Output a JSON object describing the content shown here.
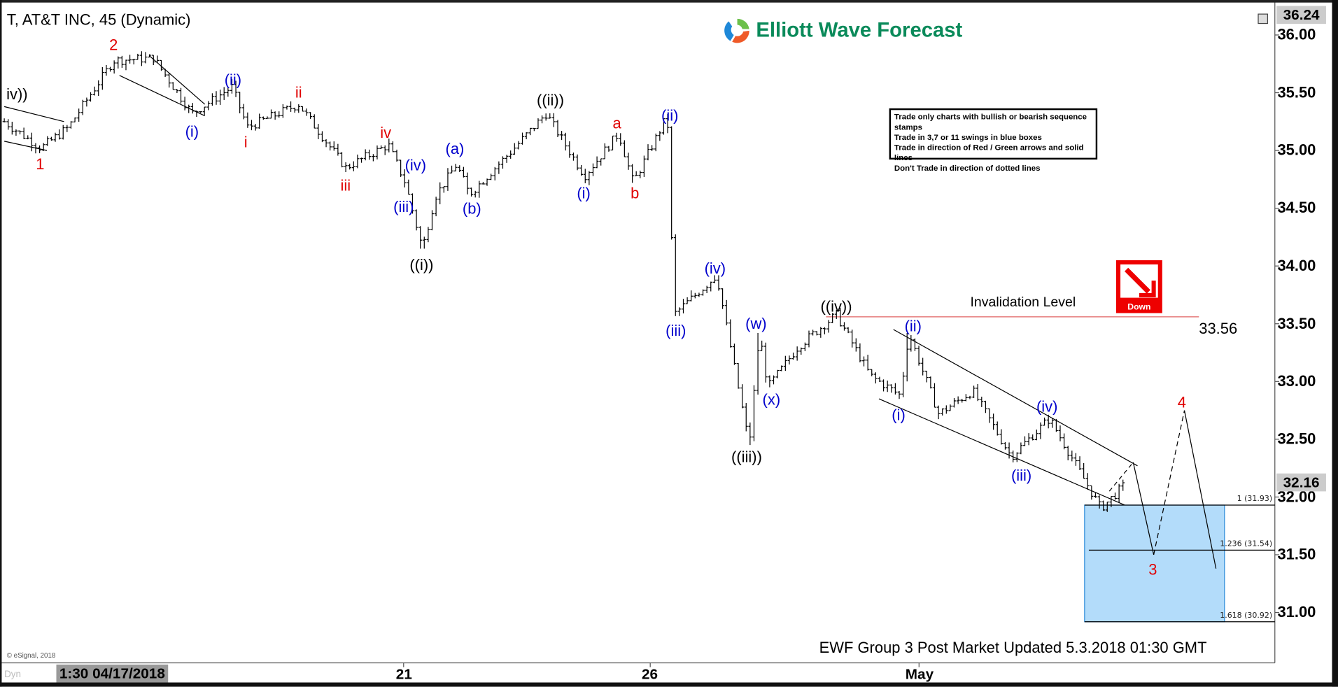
{
  "header": {
    "title": "T, AT&T INC, 45 (Dynamic)",
    "logo_text": "Elliott Wave Forecast"
  },
  "rules_box": {
    "lines": [
      "Trade only charts with bullish or bearish sequence stamps",
      "Trade in 3,7 or 11 swings in blue boxes",
      "Trade in direction of Red / Green arrows and solid lines",
      "Don't Trade in direction of dotted lines"
    ]
  },
  "invalidation": {
    "label": "Invalidation Level",
    "value": "33.56",
    "color": "#e06060"
  },
  "down_badge": {
    "label": "Down",
    "color": "#e00000",
    "icon": "arrow-down-right-icon"
  },
  "footer": "EWF Group 3 Post Market Updated 5.3.2018 01:30 GMT",
  "copyright": "© eSignal, 2018",
  "dyn_label": "Dyn",
  "chart_data": {
    "type": "ohlc",
    "title": "T, AT&T INC, 45 (Dynamic)",
    "y_axis": {
      "range": [
        30.7,
        36.3
      ],
      "ticks": [
        "36.00",
        "35.50",
        "35.00",
        "34.50",
        "34.00",
        "33.50",
        "33.00",
        "32.50",
        "32.00",
        "31.50",
        "31.00"
      ],
      "top_value": "36.24",
      "current_price": "32.16"
    },
    "x_axis": {
      "ticks": [
        "1:30 04/17/2018",
        "21",
        "26",
        "May"
      ]
    },
    "pivot_prices": [
      35.25,
      35.02,
      35.2,
      35.78,
      35.8,
      35.32,
      35.55,
      35.2,
      35.4,
      34.85,
      35.05,
      34.72,
      34.15,
      34.6,
      34.88,
      34.62,
      35.0,
      35.32,
      34.78,
      35.15,
      34.72,
      35.3,
      33.58,
      33.92,
      32.45,
      33.42,
      32.95,
      33.3,
      33.58,
      33.05,
      32.88,
      33.42,
      32.72,
      32.92,
      32.35,
      32.68,
      31.9,
      32.12
    ],
    "wave_labels": [
      {
        "text": "iv))",
        "color": "#000000"
      },
      {
        "text": "1",
        "color": "#e00000"
      },
      {
        "text": "2",
        "color": "#e00000"
      },
      {
        "text": "(i)",
        "color": "#0000cc"
      },
      {
        "text": "(ii)",
        "color": "#0000cc"
      },
      {
        "text": "i",
        "color": "#e00000"
      },
      {
        "text": "ii",
        "color": "#e00000"
      },
      {
        "text": "iii",
        "color": "#e00000"
      },
      {
        "text": "iv",
        "color": "#e00000"
      },
      {
        "text": "(iv)",
        "color": "#0000cc"
      },
      {
        "text": "(iii)",
        "color": "#0000cc"
      },
      {
        "text": "((i))",
        "color": "#000000"
      },
      {
        "text": "(a)",
        "color": "#0000cc"
      },
      {
        "text": "(b)",
        "color": "#0000cc"
      },
      {
        "text": "((ii))",
        "color": "#000000"
      },
      {
        "text": "a",
        "color": "#e00000"
      },
      {
        "text": "(i)",
        "color": "#0000cc"
      },
      {
        "text": "b",
        "color": "#e00000"
      },
      {
        "text": "(ii)",
        "color": "#0000cc"
      },
      {
        "text": "(iii)",
        "color": "#0000cc"
      },
      {
        "text": "(iv)",
        "color": "#0000cc"
      },
      {
        "text": "(w)",
        "color": "#0000cc"
      },
      {
        "text": "(x)",
        "color": "#0000cc"
      },
      {
        "text": "((iii))",
        "color": "#000000"
      },
      {
        "text": "((iv))",
        "color": "#000000"
      },
      {
        "text": "(ii)",
        "color": "#0000cc"
      },
      {
        "text": "(i)",
        "color": "#0000cc"
      },
      {
        "text": "(iv)",
        "color": "#0000cc"
      },
      {
        "text": "(iii)",
        "color": "#0000cc"
      },
      {
        "text": "4",
        "color": "#e00000"
      },
      {
        "text": "3",
        "color": "#e00000"
      }
    ],
    "blue_box": {
      "top": 31.93,
      "bottom": 30.92,
      "color": "#b3dcfa"
    },
    "fib_levels": [
      {
        "label": "1 (31.93)",
        "price": 31.93
      },
      {
        "label": "1.236 (31.54)",
        "price": 31.54
      },
      {
        "label": "1.618 (30.92)",
        "price": 30.92
      }
    ],
    "projection": {
      "wave3": 31.5,
      "wave4": 32.75,
      "end": 31.38
    }
  }
}
